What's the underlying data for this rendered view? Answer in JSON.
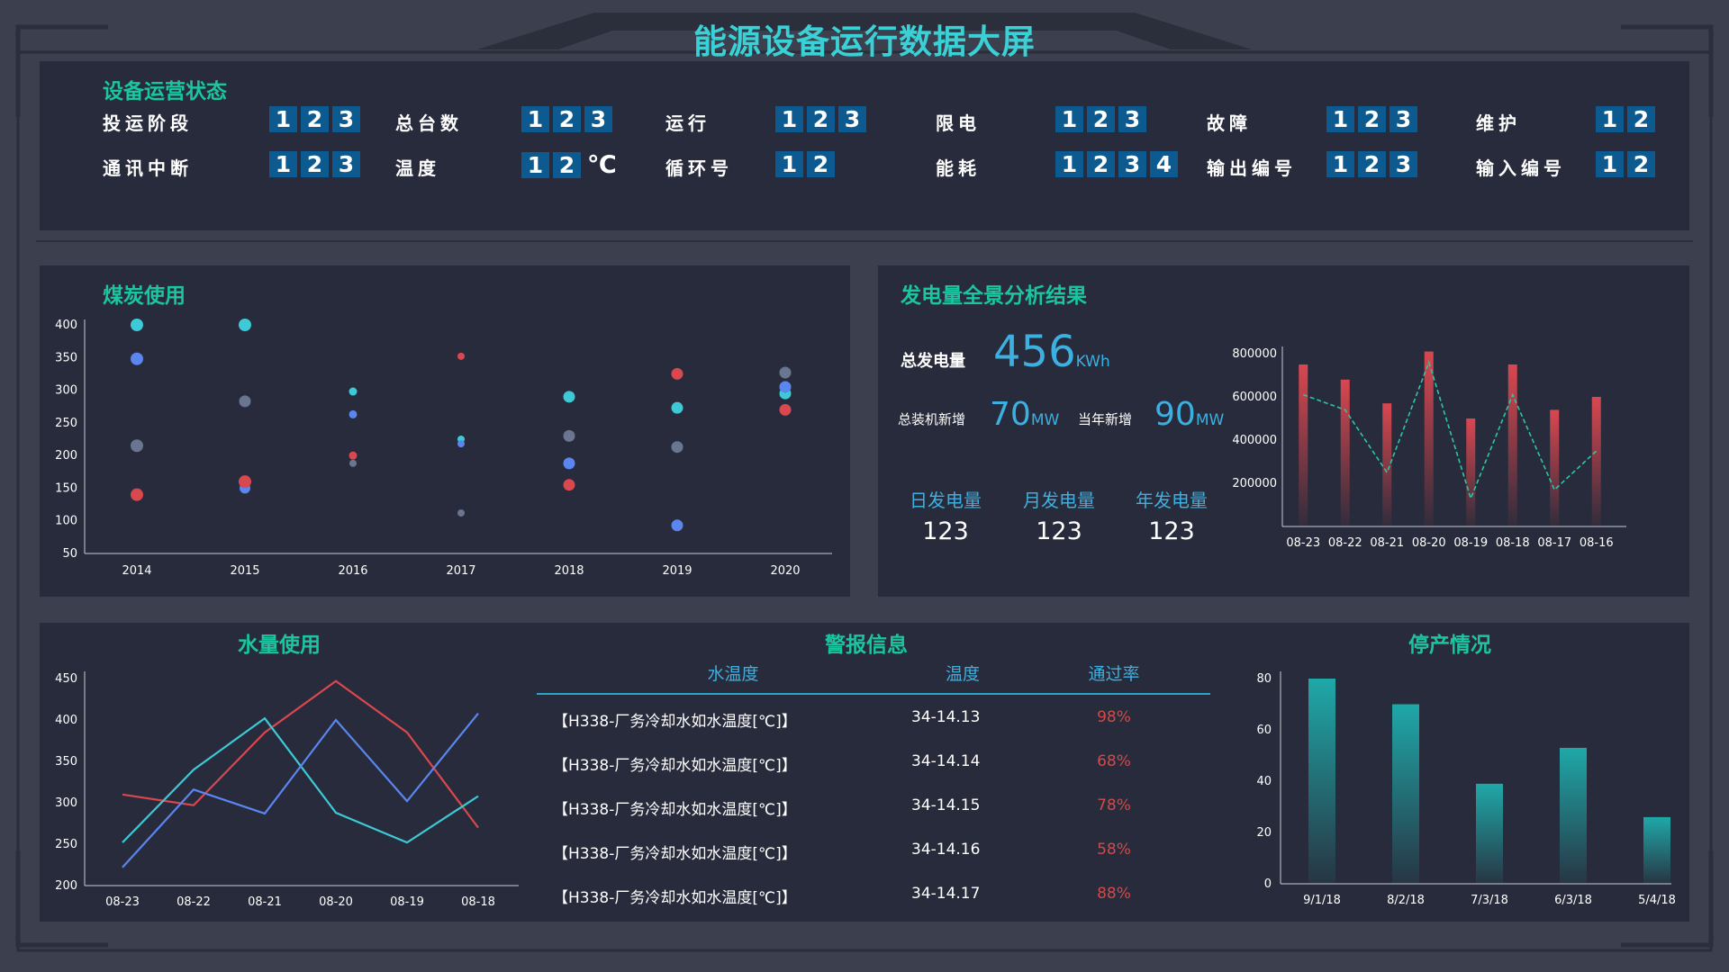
{
  "page_title": "能源设备运行数据大屏",
  "status_panel": {
    "title": "设备运营状态",
    "rows": [
      [
        {
          "label": "投运阶段",
          "digits": [
            "1",
            "2",
            "3"
          ]
        },
        {
          "label": "总台数",
          "digits": [
            "1",
            "2",
            "3"
          ]
        },
        {
          "label": "运行",
          "digits": [
            "1",
            "2",
            "3"
          ]
        },
        {
          "label": "限电",
          "digits": [
            "1",
            "2",
            "3"
          ]
        },
        {
          "label": "故障",
          "digits": [
            "1",
            "2",
            "3"
          ]
        },
        {
          "label": "维护",
          "digits": [
            "1",
            "2"
          ]
        }
      ],
      [
        {
          "label": "通讯中断",
          "digits": [
            "1",
            "2",
            "3"
          ]
        },
        {
          "label": "温度",
          "digits": [
            "1",
            "2"
          ],
          "unit": "℃"
        },
        {
          "label": "循环号",
          "digits": [
            "1",
            "2"
          ]
        },
        {
          "label": "能耗",
          "digits": [
            "1",
            "2",
            "3",
            "4"
          ]
        },
        {
          "label": "输出编号",
          "digits": [
            "1",
            "2",
            "3"
          ]
        },
        {
          "label": "输入编号",
          "digits": [
            "1",
            "2"
          ]
        }
      ]
    ]
  },
  "coal_panel": {
    "title": "煤炭使用"
  },
  "power_panel": {
    "title": "发电量全景分析结果",
    "total_label": "总发电量",
    "total_value": "456",
    "total_unit": "KWh",
    "installed_label": "总装机新增",
    "installed_value": "70",
    "installed_unit": "MW",
    "year_label": "当年新增",
    "year_value": "90",
    "year_unit": "MW",
    "summary": [
      {
        "label": "日发电量",
        "value": "123"
      },
      {
        "label": "月发电量",
        "value": "123"
      },
      {
        "label": "年发电量",
        "value": "123"
      }
    ]
  },
  "water_panel": {
    "title": "水量使用"
  },
  "alarm_panel": {
    "title": "警报信息",
    "headers": [
      "水温度",
      "温度",
      "通过率"
    ],
    "rows": [
      {
        "name": "【H338-厂务冷却水如水温度[℃]】",
        "temp": "34-14.13",
        "rate": "98%"
      },
      {
        "name": "【H338-厂务冷却水如水温度[℃]】",
        "temp": "34-14.14",
        "rate": "68%"
      },
      {
        "name": "【H338-厂务冷却水如水温度[℃]】",
        "temp": "34-14.15",
        "rate": "78%"
      },
      {
        "name": "【H338-厂务冷却水如水温度[℃]】",
        "temp": "34-14.16",
        "rate": "58%"
      },
      {
        "name": "【H338-厂务冷却水如水温度[℃]】",
        "temp": "34-14.17",
        "rate": "88%"
      }
    ]
  },
  "stop_panel": {
    "title": "停产情况"
  },
  "colors": {
    "accent_title": "#3ad1d6",
    "panel_title": "#19c6a0",
    "digit_bg": "#0c5a8f",
    "red": "#d9474f",
    "blue": "#5b86f0",
    "cyan": "#3dc9d6",
    "gray": "#6a7591",
    "teal": "#1fa8a8"
  },
  "chart_data": [
    {
      "id": "coal",
      "type": "scatter",
      "title": "煤炭使用",
      "x": [
        "2014",
        "2015",
        "2016",
        "2017",
        "2018",
        "2019",
        "2020"
      ],
      "ylim": [
        50,
        400
      ],
      "yticks": [
        50,
        100,
        150,
        200,
        250,
        300,
        350,
        400
      ],
      "series": [
        {
          "color": "#3dc9d6",
          "values": [
            400,
            400,
            298,
            225,
            290,
            273,
            295
          ],
          "sizes": [
            7,
            7,
            4.5,
            4,
            6.5,
            6.5,
            6.5
          ]
        },
        {
          "color": "#5b86f0",
          "values": [
            348,
            150,
            263,
            218,
            188,
            93,
            305
          ],
          "sizes": [
            7,
            6,
            4.5,
            4,
            6.5,
            6.5,
            6.5
          ]
        },
        {
          "color": "#6a7591",
          "values": [
            215,
            283,
            188,
            112,
            230,
            213,
            327
          ],
          "sizes": [
            7,
            6.5,
            4,
            4,
            6.5,
            6.5,
            6.5
          ]
        },
        {
          "color": "#d9474f",
          "values": [
            140,
            160,
            200,
            352,
            155,
            325,
            270
          ],
          "sizes": [
            7,
            7,
            4.5,
            4,
            6.5,
            6.5,
            6.5
          ]
        }
      ]
    },
    {
      "id": "power",
      "type": "bar+line",
      "categories": [
        "08-23",
        "08-22",
        "08-21",
        "08-20",
        "08-19",
        "08-18",
        "08-17",
        "08-16"
      ],
      "ylim": [
        0,
        800000
      ],
      "yticks": [
        200000,
        400000,
        600000,
        800000
      ],
      "bar_values": [
        750000,
        680000,
        570000,
        810000,
        500000,
        750000,
        540000,
        600000
      ],
      "line_values": [
        610000,
        540000,
        250000,
        760000,
        130000,
        610000,
        170000,
        350000
      ]
    },
    {
      "id": "water",
      "type": "line",
      "title": "水量使用",
      "categories": [
        "08-23",
        "08-22",
        "08-21",
        "08-20",
        "08-19",
        "08-18"
      ],
      "ylim": [
        200,
        450
      ],
      "yticks": [
        200,
        250,
        300,
        350,
        400,
        450
      ],
      "series": [
        {
          "color": "#d9474f",
          "values": [
            310,
            297,
            385,
            447,
            385,
            270
          ]
        },
        {
          "color": "#3dc9d6",
          "values": [
            252,
            340,
            402,
            288,
            252,
            308
          ]
        },
        {
          "color": "#5b86f0",
          "values": [
            222,
            316,
            287,
            400,
            302,
            408
          ]
        }
      ]
    },
    {
      "id": "stop",
      "type": "bar",
      "title": "停产情况",
      "categories": [
        "9/1/18",
        "8/2/18",
        "7/3/18",
        "6/3/18",
        "5/4/18"
      ],
      "values": [
        80,
        70,
        39,
        53,
        26
      ],
      "ylim": [
        0,
        80
      ],
      "yticks": [
        0,
        20,
        40,
        60,
        80
      ]
    }
  ]
}
